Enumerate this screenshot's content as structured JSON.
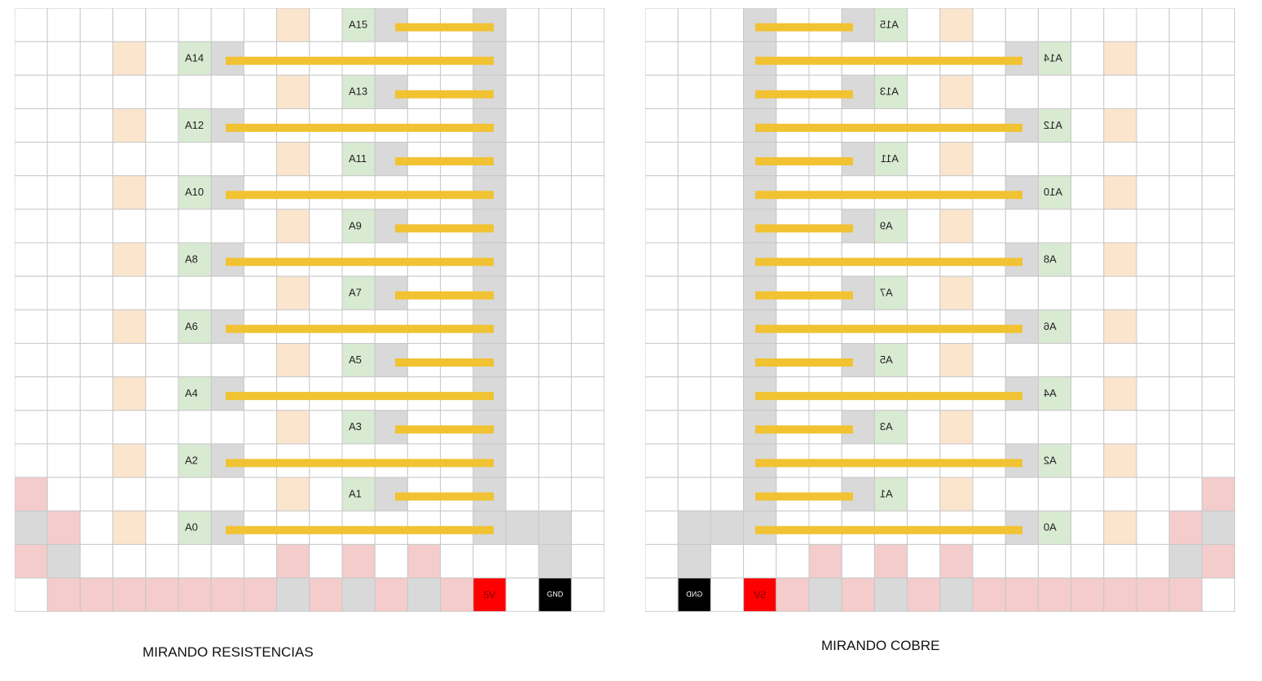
{
  "colors": {
    "grid": "#c8c8c8",
    "pad": "#d9d9d9",
    "peach": "#fce5cd",
    "pin": "#d9ead3",
    "pink": "#f4cccc",
    "power": "#ff0000",
    "ground": "#000000",
    "trace": "#f1c232",
    "text": "#222222"
  },
  "board_left": {
    "caption": "MIRANDO RESISTENCIAS",
    "power_label": "5V",
    "ground_label": "GND",
    "pins": [
      "A15",
      "A14",
      "A13",
      "A12",
      "A11",
      "A10",
      "A9",
      "A8",
      "A7",
      "A6",
      "A5",
      "A4",
      "A3",
      "A2",
      "A1",
      "A0"
    ]
  },
  "board_right": {
    "caption": "MIRANDO COBRE",
    "power_label": "5V",
    "ground_label": "GND",
    "pins": [
      "A15",
      "A14",
      "A13",
      "A12",
      "A11",
      "A10",
      "A9",
      "A8",
      "A7",
      "A6",
      "A5",
      "A4",
      "A3",
      "A2",
      "A1",
      "A0"
    ]
  }
}
